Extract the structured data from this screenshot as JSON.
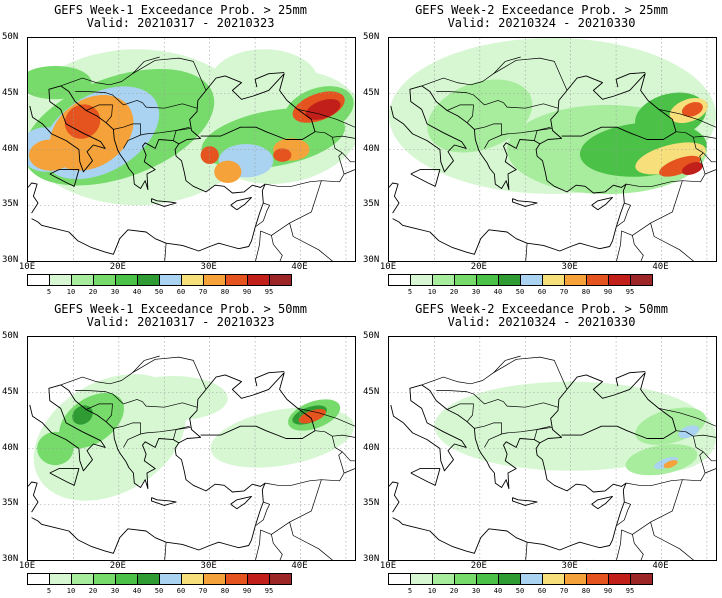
{
  "panels": [
    {
      "line1": "GEFS Week-1 Exceedance Prob. > 25mm",
      "line2": "Valid: 20210317 - 20210323",
      "week": 1,
      "threshold_mm": 25
    },
    {
      "line1": "GEFS Week-2 Exceedance Prob. > 25mm",
      "line2": "Valid: 20210324 - 20210330",
      "week": 2,
      "threshold_mm": 25
    },
    {
      "line1": "GEFS Week-1 Exceedance Prob. > 50mm",
      "line2": "Valid: 20210317 - 20210323",
      "week": 1,
      "threshold_mm": 50
    },
    {
      "line1": "GEFS Week-2 Exceedance Prob. > 50mm",
      "line2": "Valid: 20210324 - 20210330",
      "week": 2,
      "threshold_mm": 50
    }
  ],
  "lat_labels": [
    "50N",
    "45N",
    "40N",
    "35N",
    "30N"
  ],
  "lon_labels": [
    "10E",
    "20E",
    "30E",
    "40E"
  ],
  "colorbar": {
    "labels": [
      "5",
      "10",
      "20",
      "30",
      "40",
      "50",
      "60",
      "70",
      "80",
      "90",
      "95"
    ],
    "colors": [
      "#ffffff",
      "#d7f7d3",
      "#a8ec9e",
      "#77db6b",
      "#4bc147",
      "#2f9c33",
      "#a9d3f0",
      "#f7e07c",
      "#f5a23a",
      "#e5531f",
      "#c1201a",
      "#9c2525"
    ]
  }
}
